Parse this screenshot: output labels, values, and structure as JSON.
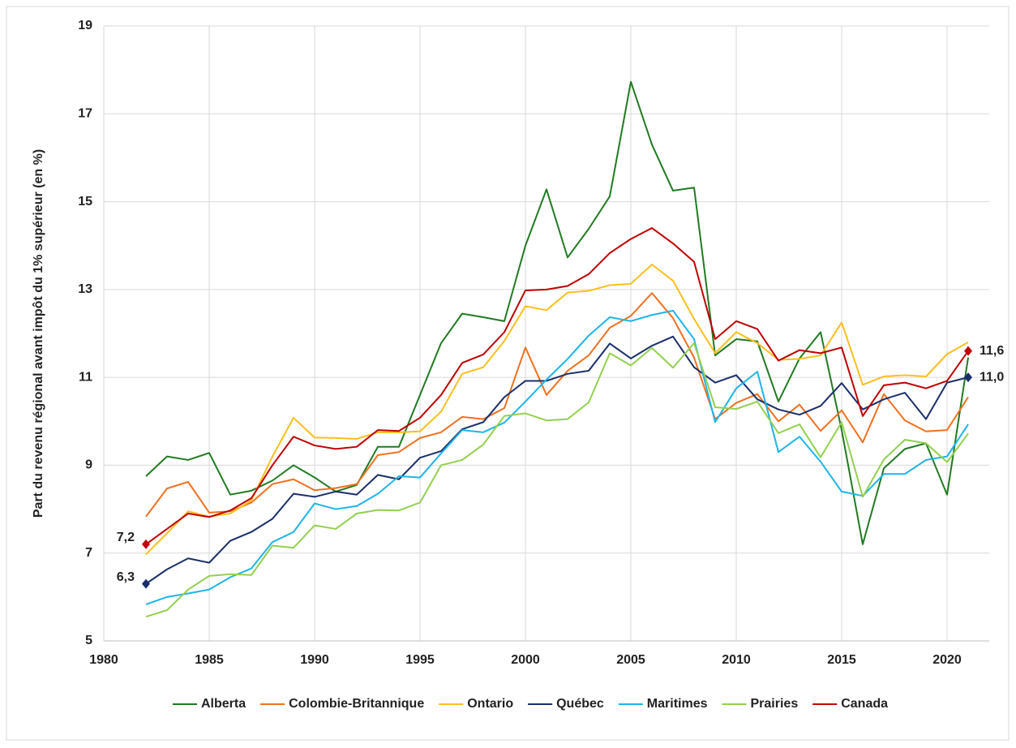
{
  "chart_data": {
    "type": "line",
    "ylabel": "Part du revenu régional avant impôt du 1% supérieur (en %)",
    "x": [
      1982,
      1983,
      1984,
      1985,
      1986,
      1987,
      1988,
      1989,
      1990,
      1991,
      1992,
      1993,
      1994,
      1995,
      1996,
      1997,
      1998,
      1999,
      2000,
      2001,
      2002,
      2003,
      2004,
      2005,
      2006,
      2007,
      2008,
      2009,
      2010,
      2011,
      2012,
      2013,
      2014,
      2015,
      2016,
      2017,
      2018,
      2019,
      2020,
      2021
    ],
    "xlim": [
      1980,
      2022
    ],
    "xticks": [
      1980,
      1985,
      1990,
      1995,
      2000,
      2005,
      2010,
      2015,
      2020
    ],
    "ylim": [
      5,
      19
    ],
    "yticks": [
      5,
      7,
      9,
      11,
      13,
      15,
      17,
      19
    ],
    "grid": true,
    "legend": "bottom",
    "series": [
      {
        "name": "Alberta",
        "color": "#217a21",
        "values": [
          8.75,
          9.2,
          9.12,
          9.28,
          8.33,
          8.42,
          8.65,
          9.0,
          8.72,
          8.4,
          8.55,
          9.42,
          9.42,
          10.6,
          11.78,
          12.45,
          12.37,
          12.28,
          14.0,
          15.28,
          13.73,
          14.38,
          15.12,
          17.73,
          16.3,
          15.25,
          15.32,
          11.5,
          11.87,
          11.82,
          10.45,
          11.43,
          12.03,
          9.8,
          7.2,
          8.93,
          9.37,
          9.5,
          8.33,
          11.45
        ]
      },
      {
        "name": "Colombie-Britannique",
        "color": "#f07020",
        "values": [
          7.83,
          8.47,
          8.62,
          7.92,
          7.95,
          8.15,
          8.57,
          8.68,
          8.43,
          8.48,
          8.57,
          9.23,
          9.3,
          9.62,
          9.75,
          10.1,
          10.05,
          10.3,
          11.68,
          10.6,
          11.15,
          11.5,
          12.13,
          12.4,
          12.92,
          12.35,
          11.45,
          10.05,
          10.42,
          10.62,
          10.0,
          10.38,
          9.78,
          10.25,
          9.52,
          10.62,
          10.02,
          9.77,
          9.8,
          10.55
        ]
      },
      {
        "name": "Ontario",
        "color": "#fbbf1c",
        "values": [
          6.97,
          7.45,
          7.95,
          7.83,
          7.9,
          8.2,
          9.2,
          10.08,
          9.63,
          9.62,
          9.6,
          9.75,
          9.75,
          9.77,
          10.22,
          11.08,
          11.23,
          11.83,
          12.62,
          12.53,
          12.93,
          12.97,
          13.1,
          13.13,
          13.57,
          13.2,
          12.33,
          11.55,
          12.03,
          11.78,
          11.4,
          11.42,
          11.5,
          12.25,
          10.83,
          11.02,
          11.05,
          11.02,
          11.53,
          11.8
        ]
      },
      {
        "name": "Québec",
        "color": "#1a2f6b",
        "values": [
          6.3,
          6.63,
          6.88,
          6.78,
          7.28,
          7.48,
          7.78,
          8.35,
          8.28,
          8.4,
          8.33,
          8.78,
          8.68,
          9.17,
          9.32,
          9.82,
          9.98,
          10.55,
          10.92,
          10.92,
          11.08,
          11.15,
          11.77,
          11.43,
          11.72,
          11.93,
          11.23,
          10.88,
          11.05,
          10.5,
          10.27,
          10.15,
          10.35,
          10.87,
          10.27,
          10.5,
          10.65,
          10.05,
          10.88,
          11.0
        ],
        "value_labels": [
          "6,3",
          null,
          null,
          null,
          null,
          null,
          null,
          null,
          null,
          null,
          null,
          null,
          null,
          null,
          null,
          null,
          null,
          null,
          null,
          null,
          null,
          null,
          null,
          null,
          null,
          null,
          null,
          null,
          null,
          null,
          null,
          null,
          null,
          null,
          null,
          null,
          null,
          null,
          null,
          "11,0"
        ]
      },
      {
        "name": "Maritimes",
        "color": "#1eb4ea",
        "values": [
          5.83,
          6.0,
          6.08,
          6.17,
          6.45,
          6.65,
          7.25,
          7.48,
          8.13,
          8.0,
          8.07,
          8.35,
          8.75,
          8.72,
          9.27,
          9.8,
          9.75,
          9.97,
          10.45,
          10.95,
          11.42,
          11.95,
          12.37,
          12.28,
          12.42,
          12.52,
          11.87,
          9.98,
          10.75,
          11.13,
          9.3,
          9.65,
          9.08,
          8.4,
          8.3,
          8.8,
          8.8,
          9.12,
          9.2,
          9.93
        ]
      },
      {
        "name": "Prairies",
        "color": "#92d050",
        "values": [
          5.55,
          5.7,
          6.17,
          6.48,
          6.52,
          6.5,
          7.17,
          7.12,
          7.63,
          7.55,
          7.9,
          7.98,
          7.97,
          8.15,
          9.0,
          9.12,
          9.47,
          10.12,
          10.18,
          10.02,
          10.05,
          10.43,
          11.55,
          11.27,
          11.67,
          11.22,
          11.78,
          10.32,
          10.28,
          10.45,
          9.73,
          9.93,
          9.18,
          9.98,
          8.28,
          9.13,
          9.58,
          9.5,
          9.07,
          9.72
        ]
      },
      {
        "name": "Canada",
        "color": "#c00000",
        "values": [
          7.2,
          7.55,
          7.9,
          7.82,
          7.97,
          8.25,
          9.0,
          9.65,
          9.45,
          9.37,
          9.42,
          9.8,
          9.78,
          10.08,
          10.6,
          11.33,
          11.52,
          12.03,
          12.98,
          13.0,
          13.08,
          13.35,
          13.83,
          14.15,
          14.4,
          14.05,
          13.63,
          11.87,
          12.28,
          12.1,
          11.38,
          11.62,
          11.55,
          11.68,
          10.12,
          10.82,
          10.88,
          10.75,
          10.92,
          11.6
        ],
        "value_labels": [
          "7,2",
          null,
          null,
          null,
          null,
          null,
          null,
          null,
          null,
          null,
          null,
          null,
          null,
          null,
          null,
          null,
          null,
          null,
          null,
          null,
          null,
          null,
          null,
          null,
          null,
          null,
          null,
          null,
          null,
          null,
          null,
          null,
          null,
          null,
          null,
          null,
          null,
          null,
          null,
          "11,6"
        ]
      }
    ]
  }
}
